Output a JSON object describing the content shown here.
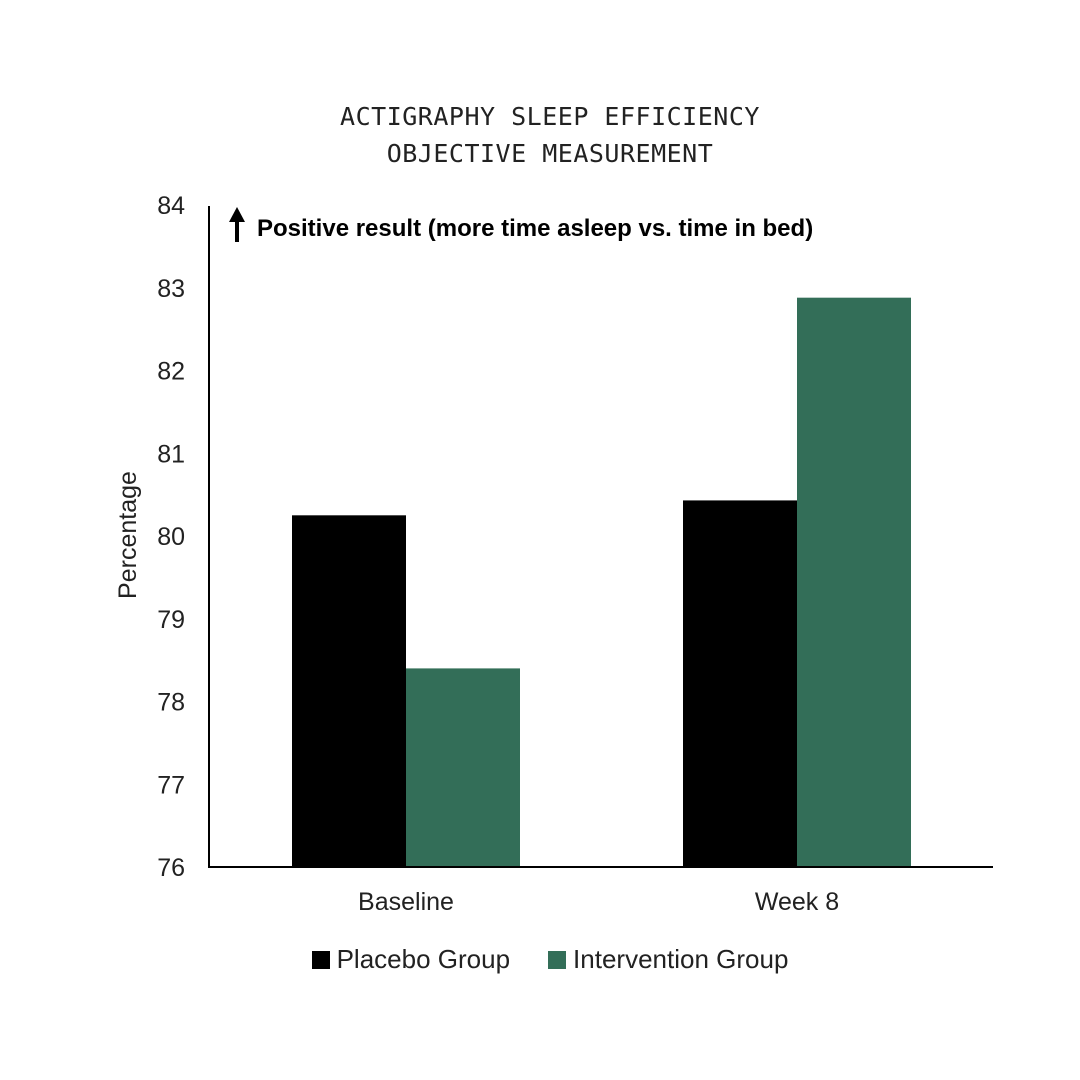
{
  "title_lines": [
    "ACTIGRAPHY SLEEP EFFICIENCY",
    "OBJECTIVE MEASUREMENT"
  ],
  "annotation": {
    "text": "Positive result (more time asleep vs. time in bed)",
    "icon": "arrow-up-icon"
  },
  "chart_data": {
    "type": "bar",
    "title": "ACTIGRAPHY SLEEP EFFICIENCY OBJECTIVE MEASUREMENT",
    "categories": [
      "Baseline",
      "Week 8"
    ],
    "series": [
      {
        "name": "Placebo Group",
        "values": [
          80.25,
          80.43
        ],
        "color": "#000000"
      },
      {
        "name": "Intervention Group",
        "values": [
          78.4,
          82.88
        ],
        "color": "#336e58"
      }
    ],
    "xlabel": "",
    "ylabel": "Percentage",
    "ylim": [
      76,
      84
    ],
    "yticks": [
      76,
      77,
      78,
      79,
      80,
      81,
      82,
      83,
      84
    ],
    "grid": false,
    "legend_position": "bottom"
  }
}
